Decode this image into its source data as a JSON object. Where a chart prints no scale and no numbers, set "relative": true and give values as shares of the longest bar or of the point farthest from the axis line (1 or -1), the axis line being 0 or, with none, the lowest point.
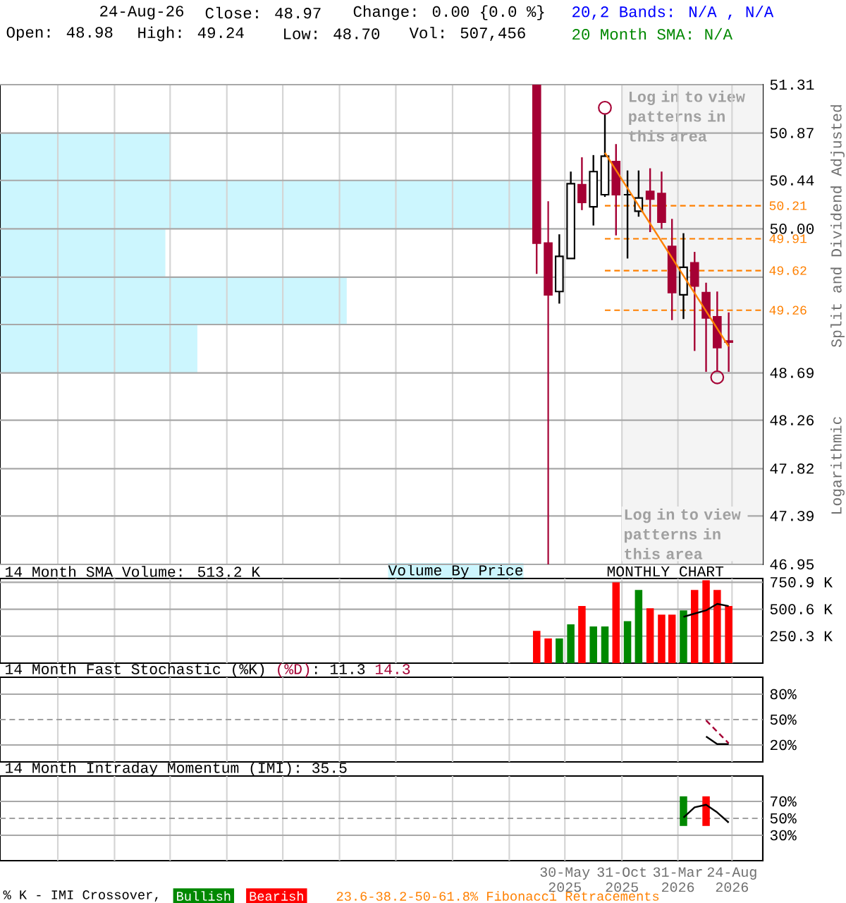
{
  "chart_data": [
    {
      "type": "candlestick",
      "x": [
        "2025-03-15",
        "2025-04-15",
        "2025-05-15",
        "2025-06-15",
        "2025-07-15",
        "2025-08-15",
        "2025-09-15",
        "2025-10-15",
        "2025-11-15",
        "2025-12-15",
        "2026-01-15",
        "2026-02-15",
        "2026-03-15",
        "2026-04-15",
        "2026-05-15",
        "2026-06-15",
        "2026-07-15",
        "2026-08-15"
      ],
      "ohlc": [
        [
          51.31,
          51.31,
          49.59,
          49.87
        ],
        [
          49.87,
          50.25,
          46.95,
          49.4
        ],
        [
          49.43,
          49.95,
          49.32,
          49.75
        ],
        [
          49.73,
          50.52,
          49.73,
          50.41
        ],
        [
          50.4,
          50.65,
          50.17,
          50.24
        ],
        [
          50.2,
          50.67,
          50.03,
          50.52
        ],
        [
          50.31,
          51.04,
          50.29,
          50.66
        ],
        [
          50.61,
          50.77,
          49.94,
          50.31
        ],
        [
          50.31,
          50.53,
          49.73,
          50.31
        ],
        [
          50.16,
          50.53,
          50.11,
          50.28
        ],
        [
          50.34,
          50.55,
          49.97,
          50.27
        ],
        [
          50.32,
          50.52,
          50.0,
          50.06
        ],
        [
          49.84,
          50.09,
          49.17,
          49.42
        ],
        [
          49.4,
          49.96,
          49.18,
          49.65
        ],
        [
          49.69,
          49.79,
          48.89,
          49.48
        ],
        [
          49.42,
          49.51,
          48.7,
          49.19
        ],
        [
          49.2,
          49.43,
          48.71,
          48.92
        ],
        [
          48.98,
          49.24,
          48.7,
          48.97
        ]
      ],
      "colors": [
        "#a50034",
        "#a50034",
        "#ffffff",
        "#ffffff",
        "#a50034",
        "#ffffff",
        "#ffffff",
        "#a50034",
        "#000000",
        "#ffffff",
        "#a50034",
        "#a50034",
        "#a50034",
        "#ffffff",
        "#a50034",
        "#a50034",
        "#a50034",
        "#a50034"
      ],
      "series": [
        {
          "type": "line",
          "x": [
            "2025-09-15",
            "2026-08-15"
          ],
          "values": [
            50.69,
            48.93
          ],
          "color": "#ff8000"
        },
        {
          "type": "scatter",
          "marker": "circle",
          "x": [
            "2025-09-15",
            "2026-07-15"
          ],
          "values": [
            51.1,
            48.65
          ],
          "color": "#a50034"
        },
        {
          "type": "line",
          "name": "20,2 Bands: N/A , N/A",
          "color": "#0000ff",
          "values": [
            null,
            null,
            null,
            null,
            null,
            null,
            null,
            null,
            null,
            null,
            null,
            null,
            null,
            null,
            null,
            null,
            null,
            null
          ]
        },
        {
          "type": "line",
          "name": "20 Month SMA: N/A",
          "color": "#008800",
          "values": [
            null,
            null,
            null,
            null,
            null,
            null,
            null,
            null,
            null,
            null,
            null,
            null,
            null,
            null,
            null,
            null,
            null,
            null
          ]
        }
      ],
      "legend": "top right",
      "xlim": [
        "2021-03-28",
        "2026-11-15"
      ],
      "xticks": [
        {
          "value": "2021-08-31",
          "label": null
        },
        {
          "value": "2022-01-31",
          "label": null
        },
        {
          "value": "2022-06-30",
          "label": null
        },
        {
          "value": "2022-11-30",
          "label": null
        },
        {
          "value": "2023-04-30",
          "label": null
        },
        {
          "value": "2023-09-30",
          "label": null
        },
        {
          "value": "2024-02-29",
          "label": null
        },
        {
          "value": "2024-07-31",
          "label": null
        },
        {
          "value": "2024-12-31",
          "label": null
        },
        {
          "value": "2025-05-30",
          "label": null
        },
        {
          "value": "2025-10-31",
          "label": null
        },
        {
          "value": "2026-03-31",
          "label": null
        },
        {
          "value": "2026-08-24",
          "label": null
        }
      ],
      "ylim": [
        46.95,
        51.31
      ],
      "yticks": [
        51.31,
        50.87,
        50.44,
        {
          "value": 50,
          "label": "50.00"
        },
        {
          "value": 49.56,
          "label": null
        },
        {
          "value": 49.13,
          "label": null
        },
        48.69,
        48.26,
        47.82,
        47.39,
        46.95
      ],
      "tick_labels": "y",
      "grid": true,
      "ylabel": "Split and Dividend Adjusted",
      "bands": [
        {
          "axis": "x",
          "from": "2025-10-31",
          "to": "2026-11-15",
          "label": "Log in to view patterns in this area",
          "color": "#f4f4f4"
        }
      ],
      "ref_lines": [
        {
          "axis": "y",
          "value": 50.21,
          "label": "50.21",
          "color": "#ff8000",
          "line_style": "dashed"
        },
        {
          "axis": "y",
          "value": 49.91,
          "label": "49.91",
          "color": "#ff8000",
          "line_style": "dashed"
        },
        {
          "axis": "y",
          "value": 49.62,
          "label": "49.62",
          "color": "#ff8000",
          "line_style": "dashed"
        },
        {
          "axis": "y",
          "value": 49.26,
          "label": "49.26",
          "color": "#ff8000",
          "line_style": "dashed"
        }
      ],
      "annotations": [
        "24-Aug-26",
        "Close: 48.97",
        "Change: 0.00 {0.0 %}",
        "Open: 48.98",
        "High: 49.24",
        "Low: 48.70",
        "Vol: 507,456",
        "Logarithmic",
        "Log in to view patterns in this area",
        "MONTHLY CHART",
        "23.6-38.2-50-61.8% Fibonacci Retracements"
      ]
    },
    {
      "type": "bar",
      "orientation": "horizontal",
      "relative": true,
      "title": "Volume By Price",
      "color": "#ccf6fe",
      "categories": [
        null,
        null,
        null,
        null,
        null
      ],
      "values": [
        0.32,
        1,
        0.31,
        0.65,
        0.37
      ]
    },
    {
      "type": "bar",
      "title": "14 Month SMA Volume: 513.2 K",
      "x": [
        "2025-03-15",
        "2025-04-15",
        "2025-05-15",
        "2025-06-15",
        "2025-07-15",
        "2025-08-15",
        "2025-09-15",
        "2025-10-15",
        "2025-11-15",
        "2025-12-15",
        "2026-01-15",
        "2026-02-15",
        "2026-03-15",
        "2026-04-15",
        "2026-05-15",
        "2026-06-15",
        "2026-07-15",
        "2026-08-15"
      ],
      "series": [
        {
          "type": "bar",
          "values": [
            300,
            230,
            230,
            360,
            530,
            340,
            340,
            750,
            390,
            680,
            510,
            450,
            450,
            490,
            680,
            770,
            680,
            530
          ],
          "colors": [
            "#ff0000",
            "#ff0000",
            "#008800",
            "#008800",
            "#ff0000",
            "#008800",
            "#008800",
            "#ff0000",
            "#008800",
            "#008800",
            "#ff0000",
            "#ff0000",
            "#ff0000",
            "#008800",
            "#ff0000",
            "#ff0000",
            "#ff0000",
            "#ff0000"
          ]
        },
        {
          "type": "line",
          "x": [
            "2026-04-15",
            "2026-05-15",
            "2026-06-15",
            "2026-07-15",
            "2026-08-15"
          ],
          "values": [
            430,
            460,
            490,
            550,
            530
          ],
          "color": "#000000"
        }
      ],
      "xlim": [
        "2021-03-28",
        "2026-11-15"
      ],
      "xticks": [
        {
          "value": "2021-08-31",
          "label": null
        },
        {
          "value": "2022-01-31",
          "label": null
        },
        {
          "value": "2022-06-30",
          "label": null
        },
        {
          "value": "2022-11-30",
          "label": null
        },
        {
          "value": "2023-04-30",
          "label": null
        },
        {
          "value": "2023-09-30",
          "label": null
        },
        {
          "value": "2024-02-29",
          "label": null
        },
        {
          "value": "2024-07-31",
          "label": null
        },
        {
          "value": "2024-12-31",
          "label": null
        },
        {
          "value": "2025-05-30",
          "label": null
        },
        {
          "value": "2025-10-31",
          "label": null
        },
        {
          "value": "2026-03-31",
          "label": null
        },
        {
          "value": "2026-08-24",
          "label": null
        }
      ],
      "ylim": [
        0,
        786
      ],
      "yticks": [
        {
          "value": 250.3,
          "label": "250.3 K"
        },
        {
          "value": 500.6,
          "label": "500.6 K"
        },
        {
          "value": 750.9,
          "label": "750.9 K"
        }
      ],
      "tick_labels": "y",
      "grid": true
    },
    {
      "type": "line",
      "title": "14 Month Fast Stochastic",
      "series": [
        {
          "name": "(%K)",
          "color": "#000000",
          "x": [
            "2026-06-15",
            "2026-07-15",
            "2026-08-15"
          ],
          "values": [
            30,
            21,
            21
          ]
        },
        {
          "name": "(%D)",
          "color": "#a50034",
          "line_style": "dashed",
          "x": [
            "2026-06-15",
            "2026-08-15"
          ],
          "values": [
            49,
            22
          ]
        }
      ],
      "annotations": [
        ": 11.3",
        "14.3"
      ],
      "xlim": [
        "2021-03-28",
        "2026-11-15"
      ],
      "xticks": [
        {
          "value": "2021-08-31",
          "label": null
        },
        {
          "value": "2022-01-31",
          "label": null
        },
        {
          "value": "2022-06-30",
          "label": null
        },
        {
          "value": "2022-11-30",
          "label": null
        },
        {
          "value": "2023-04-30",
          "label": null
        },
        {
          "value": "2023-09-30",
          "label": null
        },
        {
          "value": "2024-02-29",
          "label": null
        },
        {
          "value": "2024-07-31",
          "label": null
        },
        {
          "value": "2024-12-31",
          "label": null
        },
        {
          "value": "2025-05-30",
          "label": null
        },
        {
          "value": "2025-10-31",
          "label": null
        },
        {
          "value": "2026-03-31",
          "label": null
        },
        {
          "value": "2026-08-24",
          "label": null
        }
      ],
      "ylim": [
        0,
        100
      ],
      "yticks": [
        {
          "value": 20,
          "label": "20%"
        },
        {
          "value": 50,
          "label": "50%"
        },
        {
          "value": 80,
          "label": "80%"
        }
      ],
      "ref_lines": [
        {
          "axis": "y",
          "value": 50,
          "color": "#a0a0a0",
          "line_style": "dashed"
        }
      ],
      "tick_labels": "y",
      "grid": true
    },
    {
      "type": "bar",
      "title": "14 Month Intraday Momentum (IMI): 35.5",
      "series": [
        {
          "type": "bar",
          "name": "Bullish",
          "color": "#008800",
          "x": [
            "2026-04-15"
          ],
          "base": [
            41
          ],
          "values": [
            35
          ]
        },
        {
          "type": "bar",
          "name": "Bearish",
          "color": "#ff0000",
          "x": [
            "2026-06-15"
          ],
          "base": [
            41
          ],
          "values": [
            35
          ]
        },
        {
          "type": "line",
          "color": "#000000",
          "x": [
            "2026-04-15",
            "2026-05-15",
            "2026-06-15",
            "2026-07-15",
            "2026-08-15"
          ],
          "values": [
            51,
            63,
            66,
            57,
            45
          ]
        }
      ],
      "legend": "bottom",
      "legend_title": "% K - IMI Crossover,",
      "xlim": [
        "2021-03-28",
        "2026-11-15"
      ],
      "xticks": [
        {
          "value": "2021-08-31",
          "label": null
        },
        {
          "value": "2022-01-31",
          "label": null
        },
        {
          "value": "2022-06-30",
          "label": null
        },
        {
          "value": "2022-11-30",
          "label": null
        },
        {
          "value": "2023-04-30",
          "label": null
        },
        {
          "value": "2023-09-30",
          "label": null
        },
        {
          "value": "2024-02-29",
          "label": null
        },
        {
          "value": "2024-07-31",
          "label": null
        },
        {
          "value": "2024-12-31",
          "label": null
        },
        {
          "value": "2025-05-30",
          "label": "30-May 2025"
        },
        {
          "value": "2025-10-31",
          "label": "31-Oct 2025"
        },
        {
          "value": "2026-03-31",
          "label": "31-Mar 2026"
        },
        {
          "value": "2026-08-24",
          "label": "24-Aug 2026"
        }
      ],
      "ylim": [
        0,
        100
      ],
      "yticks": [
        {
          "value": 30,
          "label": "30%"
        },
        {
          "value": 50,
          "label": "50%"
        },
        {
          "value": 70,
          "label": "70%"
        }
      ],
      "ref_lines": [
        {
          "axis": "y",
          "value": 50,
          "color": "#a0a0a0",
          "line_style": "dashed"
        }
      ],
      "grid": true
    }
  ]
}
